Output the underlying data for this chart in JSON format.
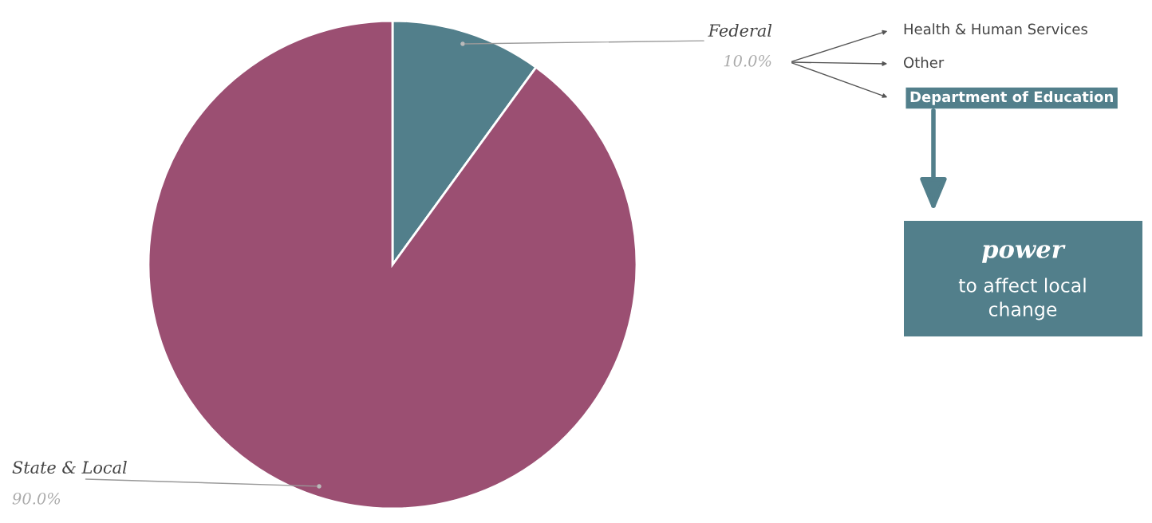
{
  "chart_data": {
    "type": "pie",
    "categories": [
      "Federal",
      "State & Local"
    ],
    "values": [
      10.0,
      90.0
    ],
    "value_labels": [
      "10.0%",
      "90.0%"
    ],
    "colors": [
      "#527f8b",
      "#9b4f72"
    ],
    "legend": false,
    "annotations": [
      "Health & Human Services",
      "Other",
      "Department of Education",
      "power",
      "to affect local\nchange"
    ]
  }
}
